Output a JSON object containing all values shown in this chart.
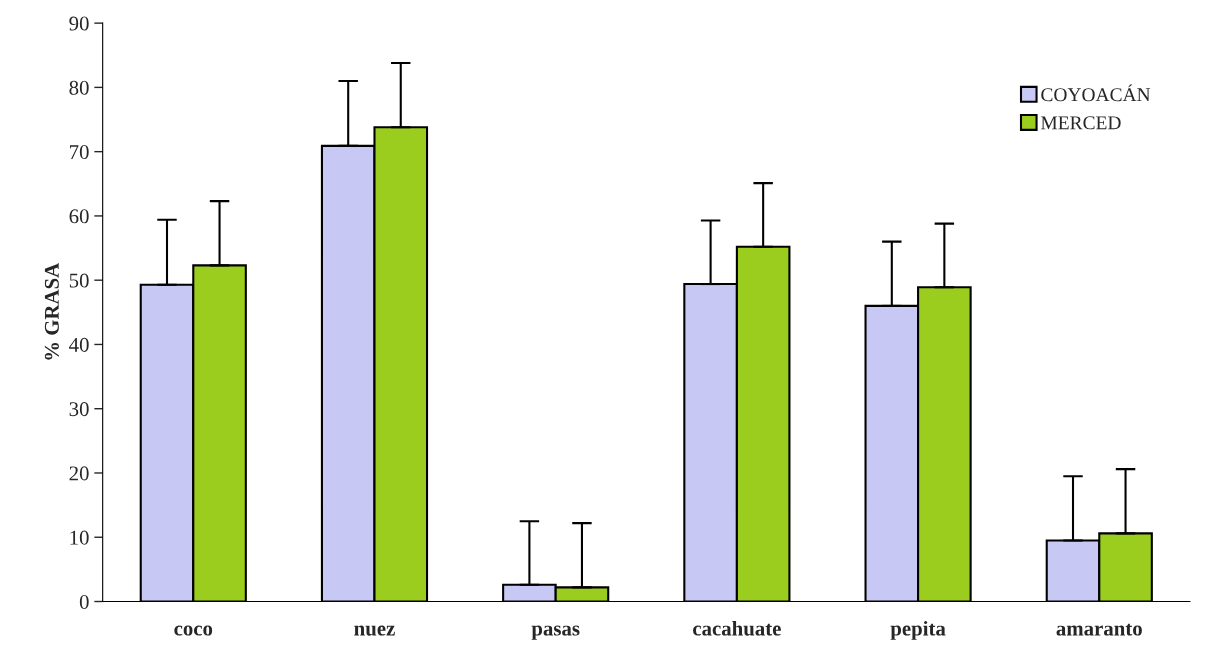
{
  "chart_data": {
    "type": "bar",
    "ylabel": "% GRASA",
    "categories": [
      "coco",
      "nuez",
      "pasas",
      "cacahuate",
      "pepita",
      "amaranto"
    ],
    "series": [
      {
        "name": "COYOACÁN",
        "color": "#c8c8f4",
        "values": [
          49.3,
          70.9,
          2.6,
          49.4,
          46.0,
          9.5
        ],
        "errors": [
          [
            49.3,
            59.4
          ],
          [
            70.9,
            81.0
          ],
          [
            2.6,
            12.5
          ],
          [
            49.4,
            59.3
          ],
          [
            46.0,
            56.0
          ],
          [
            9.5,
            19.5
          ]
        ]
      },
      {
        "name": "MERCED",
        "color": "#9acd1e",
        "values": [
          52.3,
          73.8,
          2.2,
          55.2,
          48.9,
          10.6
        ],
        "errors": [
          [
            52.3,
            62.3
          ],
          [
            73.8,
            83.8
          ],
          [
            2.2,
            12.2
          ],
          [
            55.2,
            65.1
          ],
          [
            48.9,
            58.8
          ],
          [
            10.6,
            20.6
          ]
        ]
      }
    ],
    "ylim": [
      0,
      90
    ],
    "yticks": [
      0,
      10,
      20,
      30,
      40,
      50,
      60,
      70,
      80,
      90
    ],
    "grid": false,
    "legend": "top right"
  }
}
